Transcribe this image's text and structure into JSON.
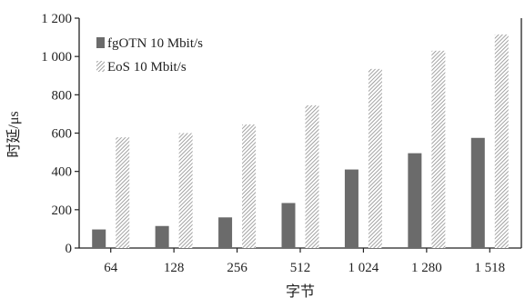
{
  "chart_data": {
    "type": "bar",
    "title": "",
    "xlabel": "字节",
    "ylabel": "时延/μs",
    "categories": [
      "64",
      "128",
      "256",
      "512",
      "1 024",
      "1 280",
      "1 518"
    ],
    "ylim": [
      0,
      1200
    ],
    "yticks": [
      0,
      200,
      400,
      600,
      800,
      1000,
      1200
    ],
    "ytick_labels": [
      "0",
      "200",
      "400",
      "600",
      "800",
      "1 000",
      "1 200"
    ],
    "grid": false,
    "legend_position": "top-left",
    "series": [
      {
        "name": "fgOTN 10 Mbit/s",
        "color": "#6b6b6b",
        "pattern": "solid",
        "values": [
          97,
          115,
          160,
          235,
          410,
          495,
          575
        ]
      },
      {
        "name": "EoS 10 Mbit/s",
        "color": "#9a9a9a",
        "pattern": "hatched",
        "values": [
          578,
          600,
          645,
          745,
          935,
          1030,
          1115
        ]
      }
    ]
  }
}
